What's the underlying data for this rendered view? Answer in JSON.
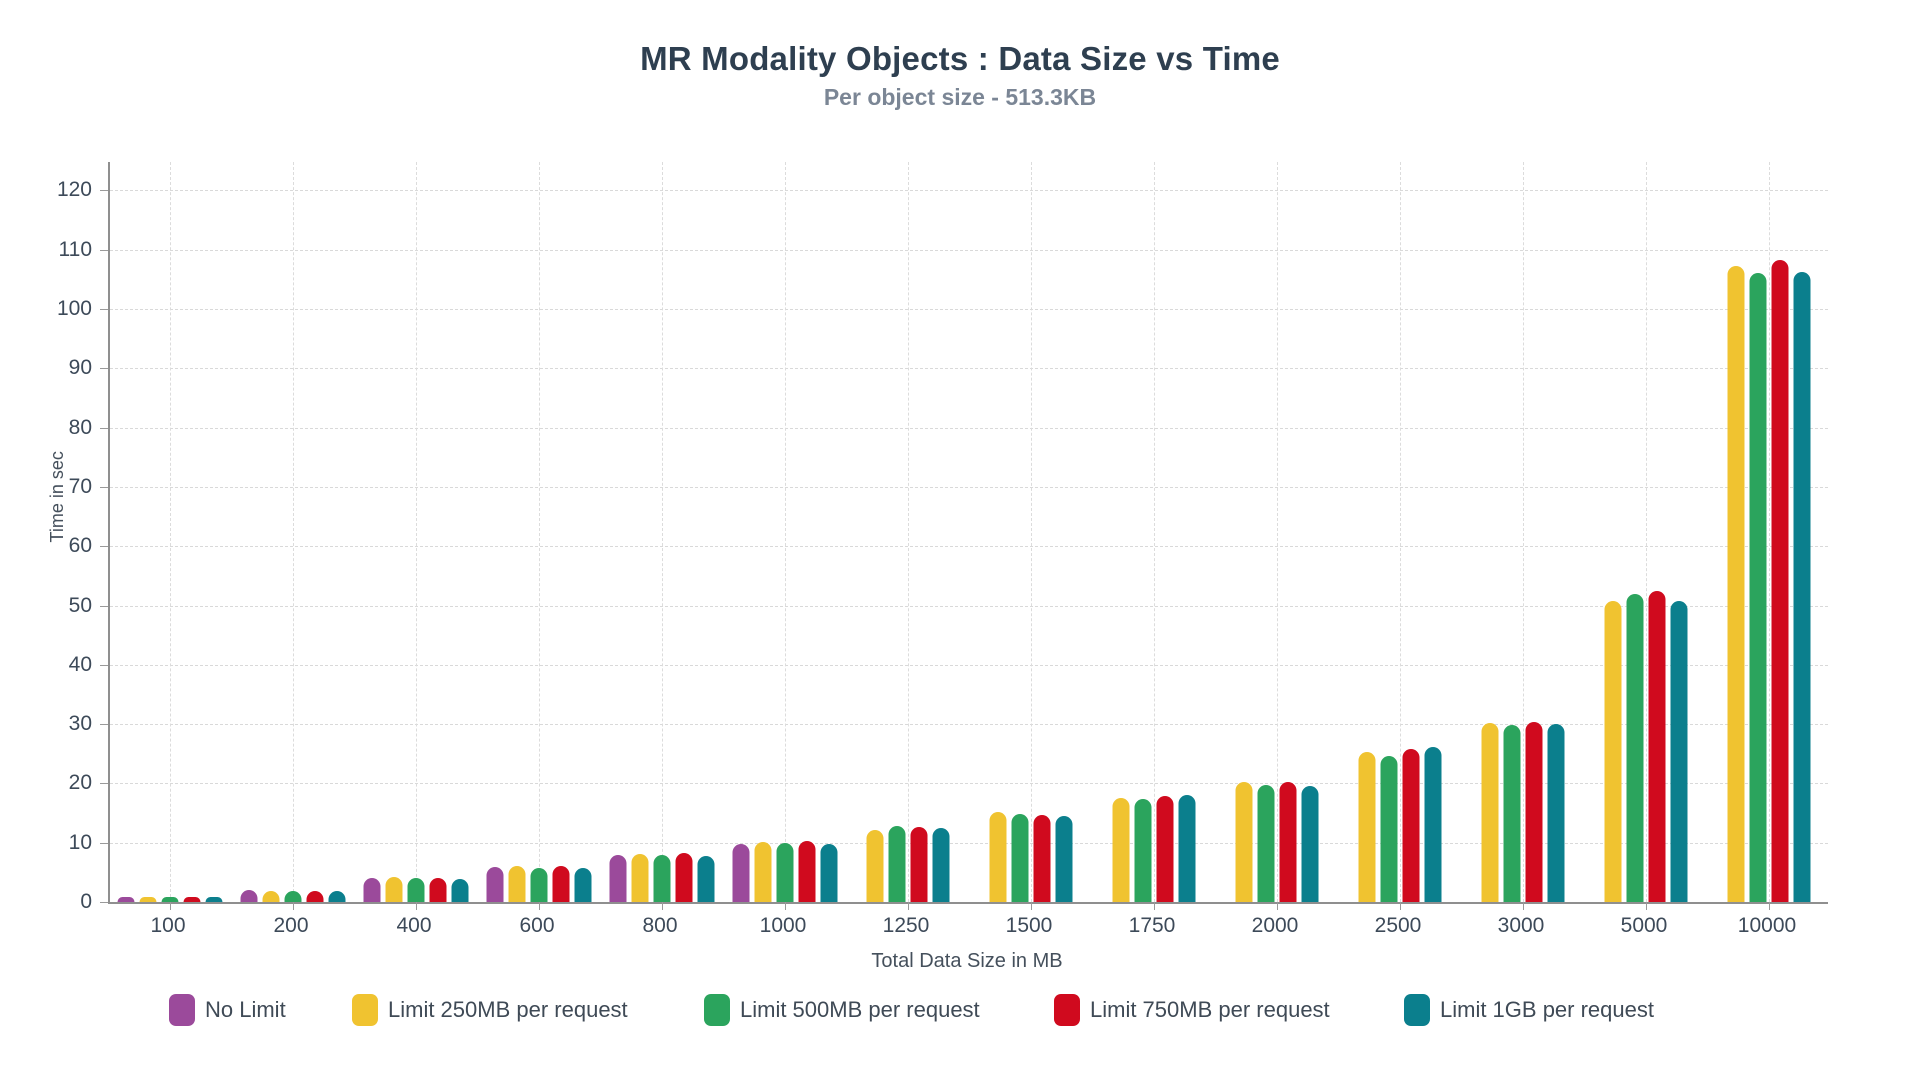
{
  "title": "MR Modality Objects : Data Size vs Time",
  "subtitle": "Per object size - 513.3KB",
  "chart_data": {
    "type": "bar",
    "title": "MR Modality Objects : Data Size vs Time",
    "subtitle": "Per object size - 513.3KB",
    "xlabel": "Total Data Size in MB",
    "ylabel": "Time in sec",
    "ylim": [
      0,
      125
    ],
    "y_ticks": [
      0,
      10,
      20,
      30,
      40,
      50,
      60,
      70,
      80,
      90,
      100,
      110,
      120
    ],
    "grid": true,
    "legend_position": "bottom",
    "categories": [
      "100",
      "200",
      "400",
      "600",
      "800",
      "1000",
      "1250",
      "1500",
      "1750",
      "2000",
      "2500",
      "3000",
      "5000",
      "10000"
    ],
    "series": [
      {
        "name": "No Limit",
        "color": "#9B4A9B",
        "values": [
          0.9,
          2.0,
          4.1,
          5.9,
          7.9,
          9.7,
          null,
          null,
          null,
          null,
          null,
          null,
          null,
          null
        ]
      },
      {
        "name": "Limit 250MB per request",
        "color": "#F0C330",
        "values": [
          0.9,
          1.9,
          4.2,
          6.0,
          8.1,
          10.1,
          12.2,
          15.1,
          17.6,
          20.3,
          25.3,
          30.2,
          50.7,
          107.2
        ]
      },
      {
        "name": "Limit 500MB per request",
        "color": "#2BA45D",
        "values": [
          0.9,
          1.8,
          4.0,
          5.7,
          7.9,
          9.9,
          12.8,
          14.8,
          17.3,
          19.8,
          24.7,
          29.8,
          51.9,
          106.0
        ]
      },
      {
        "name": "Limit 750MB per request",
        "color": "#D00A1E",
        "values": [
          0.9,
          1.9,
          4.1,
          6.0,
          8.3,
          10.3,
          12.6,
          14.6,
          17.9,
          20.2,
          25.8,
          30.4,
          52.4,
          108.2
        ]
      },
      {
        "name": "Limit 1GB per request",
        "color": "#0B7F8D",
        "values": [
          0.9,
          1.8,
          3.8,
          5.7,
          7.7,
          9.7,
          12.4,
          14.5,
          18.0,
          19.6,
          26.1,
          30.1,
          50.8,
          106.3
        ]
      }
    ]
  }
}
